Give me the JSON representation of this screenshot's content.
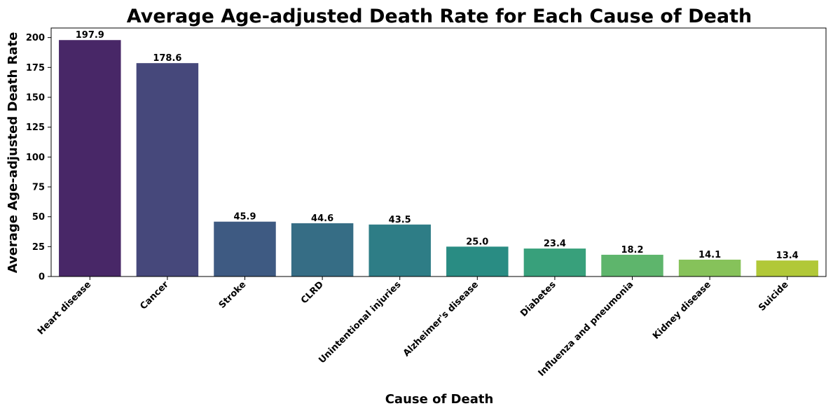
{
  "chart_data": {
    "type": "bar",
    "title": "Average Age-adjusted Death Rate for Each Cause of Death",
    "xlabel": "Cause of Death",
    "ylabel": "Average Age-adjusted Death Rate",
    "ylim": [
      0,
      208
    ],
    "yticks": [
      0,
      25,
      50,
      75,
      100,
      125,
      150,
      175,
      200
    ],
    "grid": false,
    "legend": "none",
    "categories": [
      "Heart disease",
      "Cancer",
      "Stroke",
      "CLRD",
      "Unintentional injuries",
      "Alzheimer's disease",
      "Diabetes",
      "Influenza and pneumonia",
      "Kidney disease",
      "Suicide"
    ],
    "values": [
      197.9,
      178.6,
      45.9,
      44.6,
      43.5,
      25.0,
      23.4,
      18.2,
      14.1,
      13.4
    ],
    "value_labels": [
      "197.9",
      "178.6",
      "45.9",
      "44.6",
      "43.5",
      "25.0",
      "23.4",
      "18.2",
      "14.1",
      "13.4"
    ],
    "colors": [
      "#482767",
      "#46487b",
      "#3e5a82",
      "#366d85",
      "#2e7d86",
      "#298c83",
      "#38a07b",
      "#5eb56c",
      "#86c25a",
      "#b1c838"
    ]
  }
}
